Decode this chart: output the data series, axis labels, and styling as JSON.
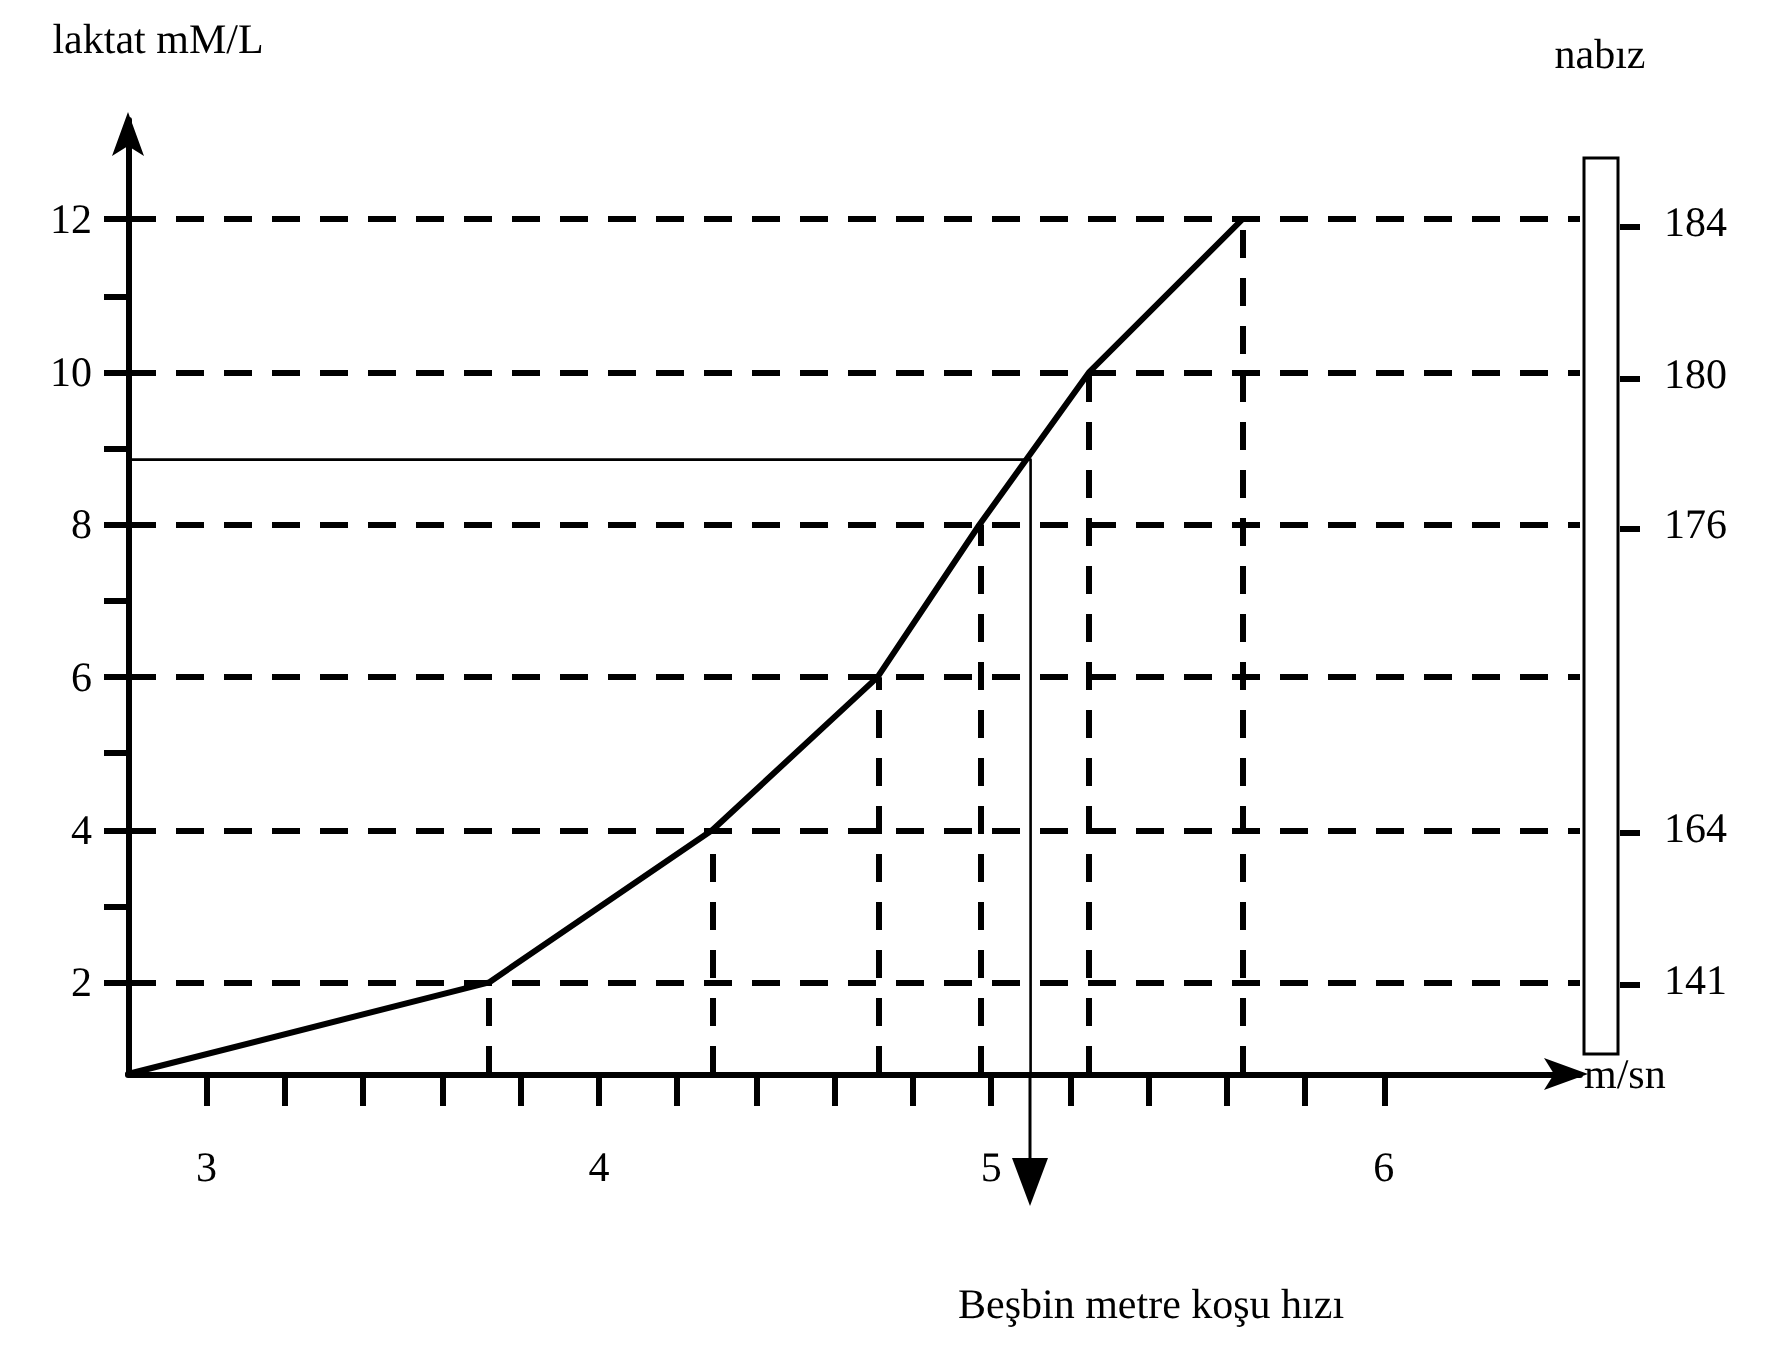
{
  "chart_data": {
    "type": "line",
    "xlabel": "m/sn",
    "ylabel": "laktat mM/L",
    "y2label": "nabız",
    "annotations": [
      "Beşbin metre koşu hızı",
      "184",
      "180",
      "176",
      "164",
      "141"
    ],
    "series": [
      {
        "color": "#000000",
        "x": [
          2.8,
          3.72,
          4.29,
          4.71,
          4.97,
          5.25,
          5.64
        ],
        "values": [
          0.8,
          2,
          4,
          6,
          8,
          10,
          12
        ]
      },
      {
        "color": "#000000",
        "x": [
          2.8,
          5.1,
          5.1
        ],
        "values": [
          8.85,
          8.85,
          0.8
        ]
      }
    ],
    "xlim": [
      2.8,
      6.5
    ],
    "xticks": [
      3,
      {
        "value": 3.2,
        "label": null
      },
      {
        "value": 3.4,
        "label": null
      },
      {
        "value": 3.6,
        "label": null
      },
      {
        "value": 3.8,
        "label": null
      },
      4,
      {
        "value": 4.2,
        "label": null
      },
      {
        "value": 4.4,
        "label": null
      },
      {
        "value": 4.6,
        "label": null
      },
      {
        "value": 4.8,
        "label": null
      },
      5,
      {
        "value": 5.2,
        "label": null
      },
      {
        "value": 5.4,
        "label": null
      },
      {
        "value": 5.6,
        "label": null
      },
      {
        "value": 5.8,
        "label": null
      },
      6
    ],
    "ylim": [
      0.8,
      13.3
    ],
    "yticks": [
      2,
      {
        "value": 3,
        "label": null
      },
      4,
      {
        "value": 5,
        "label": null
      },
      6,
      {
        "value": 7,
        "label": null
      },
      8,
      {
        "value": 9,
        "label": null
      },
      10,
      {
        "value": 11,
        "label": null
      },
      12
    ],
    "ref_lines": [
      {
        "axis": "y",
        "value": 2,
        "line_style": "dashed"
      },
      {
        "axis": "y",
        "value": 4,
        "line_style": "dashed"
      },
      {
        "axis": "y",
        "value": 6,
        "line_style": "dashed"
      },
      {
        "axis": "y",
        "value": 8,
        "line_style": "dashed"
      },
      {
        "axis": "y",
        "value": 10,
        "line_style": "dashed"
      },
      {
        "axis": "y",
        "value": 12,
        "line_style": "dashed"
      },
      {
        "axis": "x",
        "value": 3.72,
        "line_style": "dashed"
      },
      {
        "axis": "x",
        "value": 4.29,
        "line_style": "dashed"
      },
      {
        "axis": "x",
        "value": 4.71,
        "line_style": "dashed"
      },
      {
        "axis": "x",
        "value": 4.97,
        "line_style": "dashed"
      },
      {
        "axis": "x",
        "value": 5.25,
        "line_style": "dashed"
      },
      {
        "axis": "x",
        "value": 5.64,
        "line_style": "dashed"
      }
    ],
    "grid": false,
    "marker": "none",
    "line_style": "solid"
  }
}
